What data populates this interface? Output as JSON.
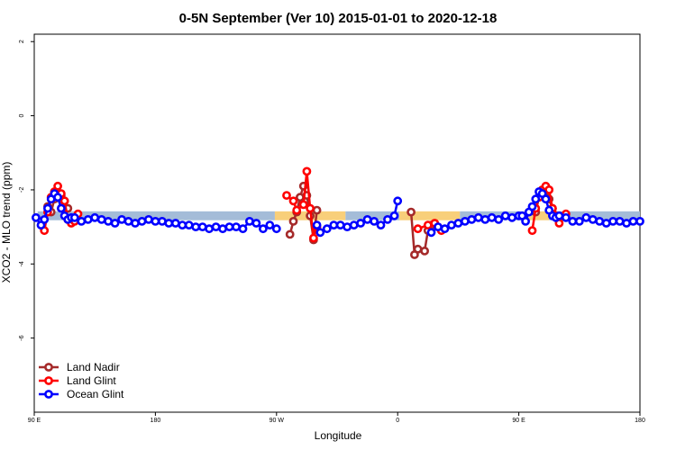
{
  "chart_data": {
    "type": "line",
    "title": "0-5N September (Ver 10)   2015-01-01 to 2020-12-18",
    "xlabel": "Longitude",
    "ylabel": "XCO2 - MLO trend (ppm)",
    "xlim": [
      -90,
      270
    ],
    "ylim": [
      -8,
      2.2
    ],
    "x_ticks": [
      {
        "value": -90,
        "label": "90 E"
      },
      {
        "value": -18,
        "label": "180"
      },
      {
        "value": 54,
        "label": "90 W"
      },
      {
        "value": 126,
        "label": "0"
      },
      {
        "value": 198,
        "label": "90 E"
      },
      {
        "value": 270,
        "label": "180"
      }
    ],
    "y_ticks": [
      {
        "value": 2,
        "label": "2"
      },
      {
        "value": 0,
        "label": "0"
      },
      {
        "value": -2,
        "label": "-2"
      },
      {
        "value": -4,
        "label": "-4"
      },
      {
        "value": -6,
        "label": "-6"
      }
    ],
    "legend_position": "bottom-left",
    "bands": [
      {
        "x0": -88,
        "x1": 53,
        "y0": -2.58,
        "y1": -2.82,
        "color": "#a4bcd8"
      },
      {
        "x0": 53,
        "x1": 95,
        "y0": -2.58,
        "y1": -2.82,
        "color": "#f8cf7a"
      },
      {
        "x0": 95,
        "x1": 127,
        "y0": -2.58,
        "y1": -2.82,
        "color": "#a4bcd8"
      },
      {
        "x0": 127,
        "x1": 163,
        "y0": -2.58,
        "y1": -2.82,
        "color": "#f8cf7a"
      },
      {
        "x0": 163,
        "x1": 201,
        "y0": -2.58,
        "y1": -2.82,
        "color": "#a4bcd8"
      },
      {
        "x0": 201,
        "x1": 216,
        "y0": -2.58,
        "y1": -2.82,
        "color": "#f8cf7a"
      },
      {
        "x0": 216,
        "x1": 270,
        "y0": -2.58,
        "y1": -2.82,
        "color": "#a4bcd8"
      }
    ],
    "series": [
      {
        "name": "Land Nadir",
        "color": "#a52a2a",
        "segments": [
          [
            [
              -82,
              -2.45
            ],
            [
              -80,
              -2.6
            ],
            [
              -78,
              -2.25
            ],
            [
              -76,
              -2.1
            ],
            [
              -74,
              -2.15
            ],
            [
              -72,
              -2.3
            ],
            [
              -70,
              -2.5
            ]
          ],
          [
            [
              62,
              -3.2
            ],
            [
              64,
              -2.85
            ],
            [
              66,
              -2.6
            ],
            [
              68,
              -2.2
            ],
            [
              70,
              -1.9
            ],
            [
              72,
              -2.15
            ],
            [
              74,
              -2.7
            ],
            [
              76,
              -3.35
            ],
            [
              78,
              -2.55
            ]
          ],
          [
            [
              134,
              -2.6
            ],
            [
              136,
              -3.75
            ],
            [
              138,
              -3.6
            ],
            [
              142,
              -3.65
            ],
            [
              144,
              -3.1
            ],
            [
              146,
              -2.95
            ]
          ],
          [
            [
              206,
              -2.5
            ],
            [
              208,
              -2.6
            ],
            [
              210,
              -2.2
            ],
            [
              212,
              -2.1
            ],
            [
              214,
              -2.05
            ],
            [
              216,
              -2.25
            ],
            [
              218,
              -2.5
            ],
            [
              222,
              -2.7
            ]
          ]
        ]
      },
      {
        "name": "Land Glint",
        "color": "#ff0000",
        "segments": [
          [
            [
              -84,
              -3.1
            ],
            [
              -82,
              -2.6
            ],
            [
              -80,
              -2.2
            ],
            [
              -78,
              -2.05
            ],
            [
              -76,
              -1.9
            ],
            [
              -74,
              -2.1
            ],
            [
              -72,
              -2.3
            ],
            [
              -70,
              -2.8
            ],
            [
              -68,
              -2.9
            ],
            [
              -66,
              -2.85
            ],
            [
              -64,
              -2.65
            ]
          ],
          [
            [
              60,
              -2.15
            ],
            [
              64,
              -2.3
            ],
            [
              66,
              -2.55
            ],
            [
              70,
              -2.4
            ],
            [
              72,
              -1.5
            ],
            [
              74,
              -2.5
            ],
            [
              76,
              -3.3
            ],
            [
              78,
              -3.0
            ]
          ],
          [
            [
              138,
              -3.05
            ],
            [
              144,
              -2.95
            ],
            [
              148,
              -2.9
            ],
            [
              150,
              -3.0
            ],
            [
              152,
              -3.1
            ]
          ],
          [
            [
              206,
              -3.1
            ],
            [
              208,
              -2.5
            ],
            [
              210,
              -2.2
            ],
            [
              212,
              -2.0
            ],
            [
              214,
              -1.9
            ],
            [
              216,
              -2.0
            ],
            [
              218,
              -2.5
            ],
            [
              220,
              -2.7
            ],
            [
              222,
              -2.9
            ],
            [
              226,
              -2.65
            ]
          ]
        ]
      },
      {
        "name": "Ocean Glint",
        "color": "#0000ff",
        "segments": [
          [
            [
              -89,
              -2.75
            ],
            [
              -86,
              -2.95
            ],
            [
              -84,
              -2.8
            ],
            [
              -82,
              -2.5
            ],
            [
              -80,
              -2.25
            ],
            [
              -78,
              -2.1
            ],
            [
              -76,
              -2.2
            ],
            [
              -74,
              -2.5
            ],
            [
              -72,
              -2.7
            ],
            [
              -70,
              -2.8
            ],
            [
              -68,
              -2.75
            ],
            [
              -66,
              -2.75
            ],
            [
              -62,
              -2.85
            ],
            [
              -58,
              -2.8
            ],
            [
              -54,
              -2.75
            ],
            [
              -50,
              -2.8
            ],
            [
              -46,
              -2.85
            ],
            [
              -42,
              -2.9
            ],
            [
              -38,
              -2.8
            ],
            [
              -34,
              -2.85
            ],
            [
              -30,
              -2.9
            ],
            [
              -26,
              -2.85
            ],
            [
              -22,
              -2.8
            ],
            [
              -18,
              -2.85
            ],
            [
              -14,
              -2.85
            ],
            [
              -10,
              -2.9
            ],
            [
              -6,
              -2.9
            ],
            [
              -2,
              -2.95
            ],
            [
              2,
              -2.95
            ],
            [
              6,
              -3.0
            ],
            [
              10,
              -3.0
            ],
            [
              14,
              -3.05
            ],
            [
              18,
              -3.0
            ],
            [
              22,
              -3.05
            ],
            [
              26,
              -3.0
            ],
            [
              30,
              -3.0
            ],
            [
              34,
              -3.05
            ],
            [
              38,
              -2.85
            ],
            [
              42,
              -2.9
            ],
            [
              46,
              -3.05
            ],
            [
              50,
              -2.95
            ],
            [
              54,
              -3.05
            ]
          ],
          [
            [
              78,
              -2.95
            ],
            [
              80,
              -3.15
            ],
            [
              84,
              -3.05
            ],
            [
              88,
              -2.95
            ],
            [
              92,
              -2.95
            ],
            [
              96,
              -3.0
            ],
            [
              100,
              -2.95
            ],
            [
              104,
              -2.9
            ],
            [
              108,
              -2.8
            ],
            [
              112,
              -2.85
            ],
            [
              116,
              -2.95
            ],
            [
              120,
              -2.8
            ],
            [
              124,
              -2.7
            ],
            [
              126,
              -2.3
            ]
          ],
          [
            [
              146,
              -3.15
            ],
            [
              150,
              -3.0
            ],
            [
              154,
              -3.05
            ],
            [
              158,
              -2.95
            ],
            [
              162,
              -2.9
            ],
            [
              166,
              -2.85
            ],
            [
              170,
              -2.8
            ],
            [
              174,
              -2.75
            ],
            [
              178,
              -2.8
            ],
            [
              182,
              -2.75
            ],
            [
              186,
              -2.8
            ],
            [
              190,
              -2.7
            ],
            [
              194,
              -2.75
            ],
            [
              198,
              -2.7
            ],
            [
              200,
              -2.7
            ],
            [
              202,
              -2.85
            ],
            [
              204,
              -2.6
            ],
            [
              206,
              -2.45
            ],
            [
              208,
              -2.25
            ],
            [
              210,
              -2.05
            ],
            [
              212,
              -2.1
            ],
            [
              214,
              -2.25
            ],
            [
              216,
              -2.55
            ],
            [
              218,
              -2.7
            ],
            [
              220,
              -2.75
            ],
            [
              222,
              -2.7
            ],
            [
              226,
              -2.75
            ],
            [
              230,
              -2.85
            ],
            [
              234,
              -2.85
            ],
            [
              238,
              -2.75
            ],
            [
              242,
              -2.8
            ],
            [
              246,
              -2.85
            ],
            [
              250,
              -2.9
            ],
            [
              254,
              -2.85
            ],
            [
              258,
              -2.85
            ],
            [
              262,
              -2.9
            ],
            [
              266,
              -2.85
            ],
            [
              270,
              -2.85
            ]
          ]
        ]
      }
    ]
  }
}
